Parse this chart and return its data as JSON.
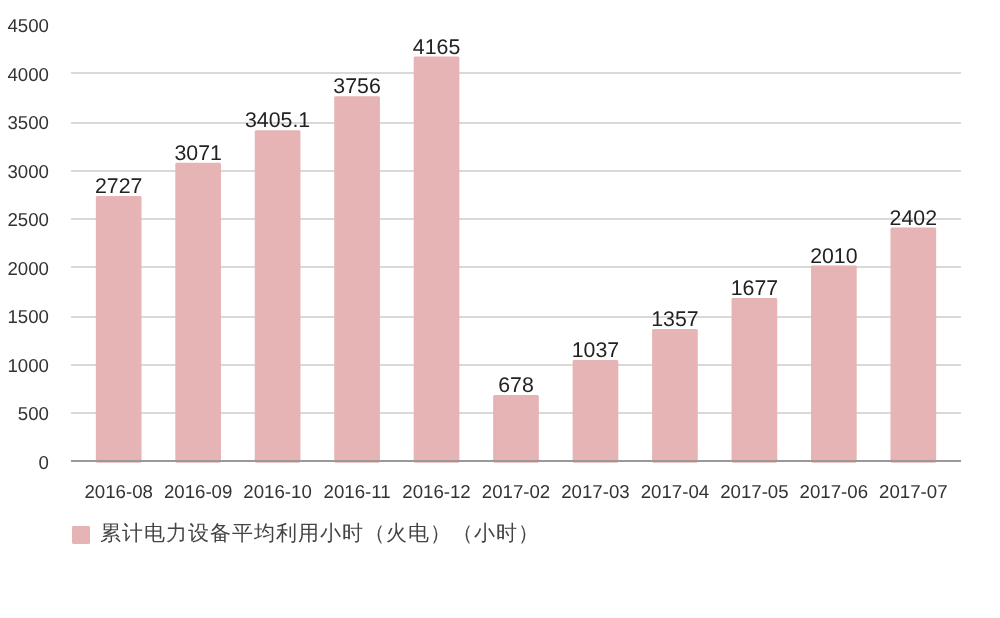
{
  "chart_data": {
    "type": "bar",
    "categories": [
      "2016-08",
      "2016-09",
      "2016-10",
      "2016-11",
      "2016-12",
      "2017-02",
      "2017-03",
      "2017-04",
      "2017-05",
      "2017-06",
      "2017-07"
    ],
    "series": [
      {
        "name": "累计电力设备平均利用小时（火电）（小时）",
        "color": "#e6b4b4",
        "values": [
          2727,
          3071,
          3405.1,
          3756,
          4165,
          678,
          1037,
          1357,
          1677,
          2010,
          2402
        ]
      }
    ],
    "ylim": [
      0,
      4500
    ],
    "yticks": [
      0,
      500,
      1000,
      1500,
      2000,
      2500,
      3000,
      3500,
      4000,
      4500
    ],
    "grid": "y",
    "legend": "bottom",
    "data_labels": true
  }
}
